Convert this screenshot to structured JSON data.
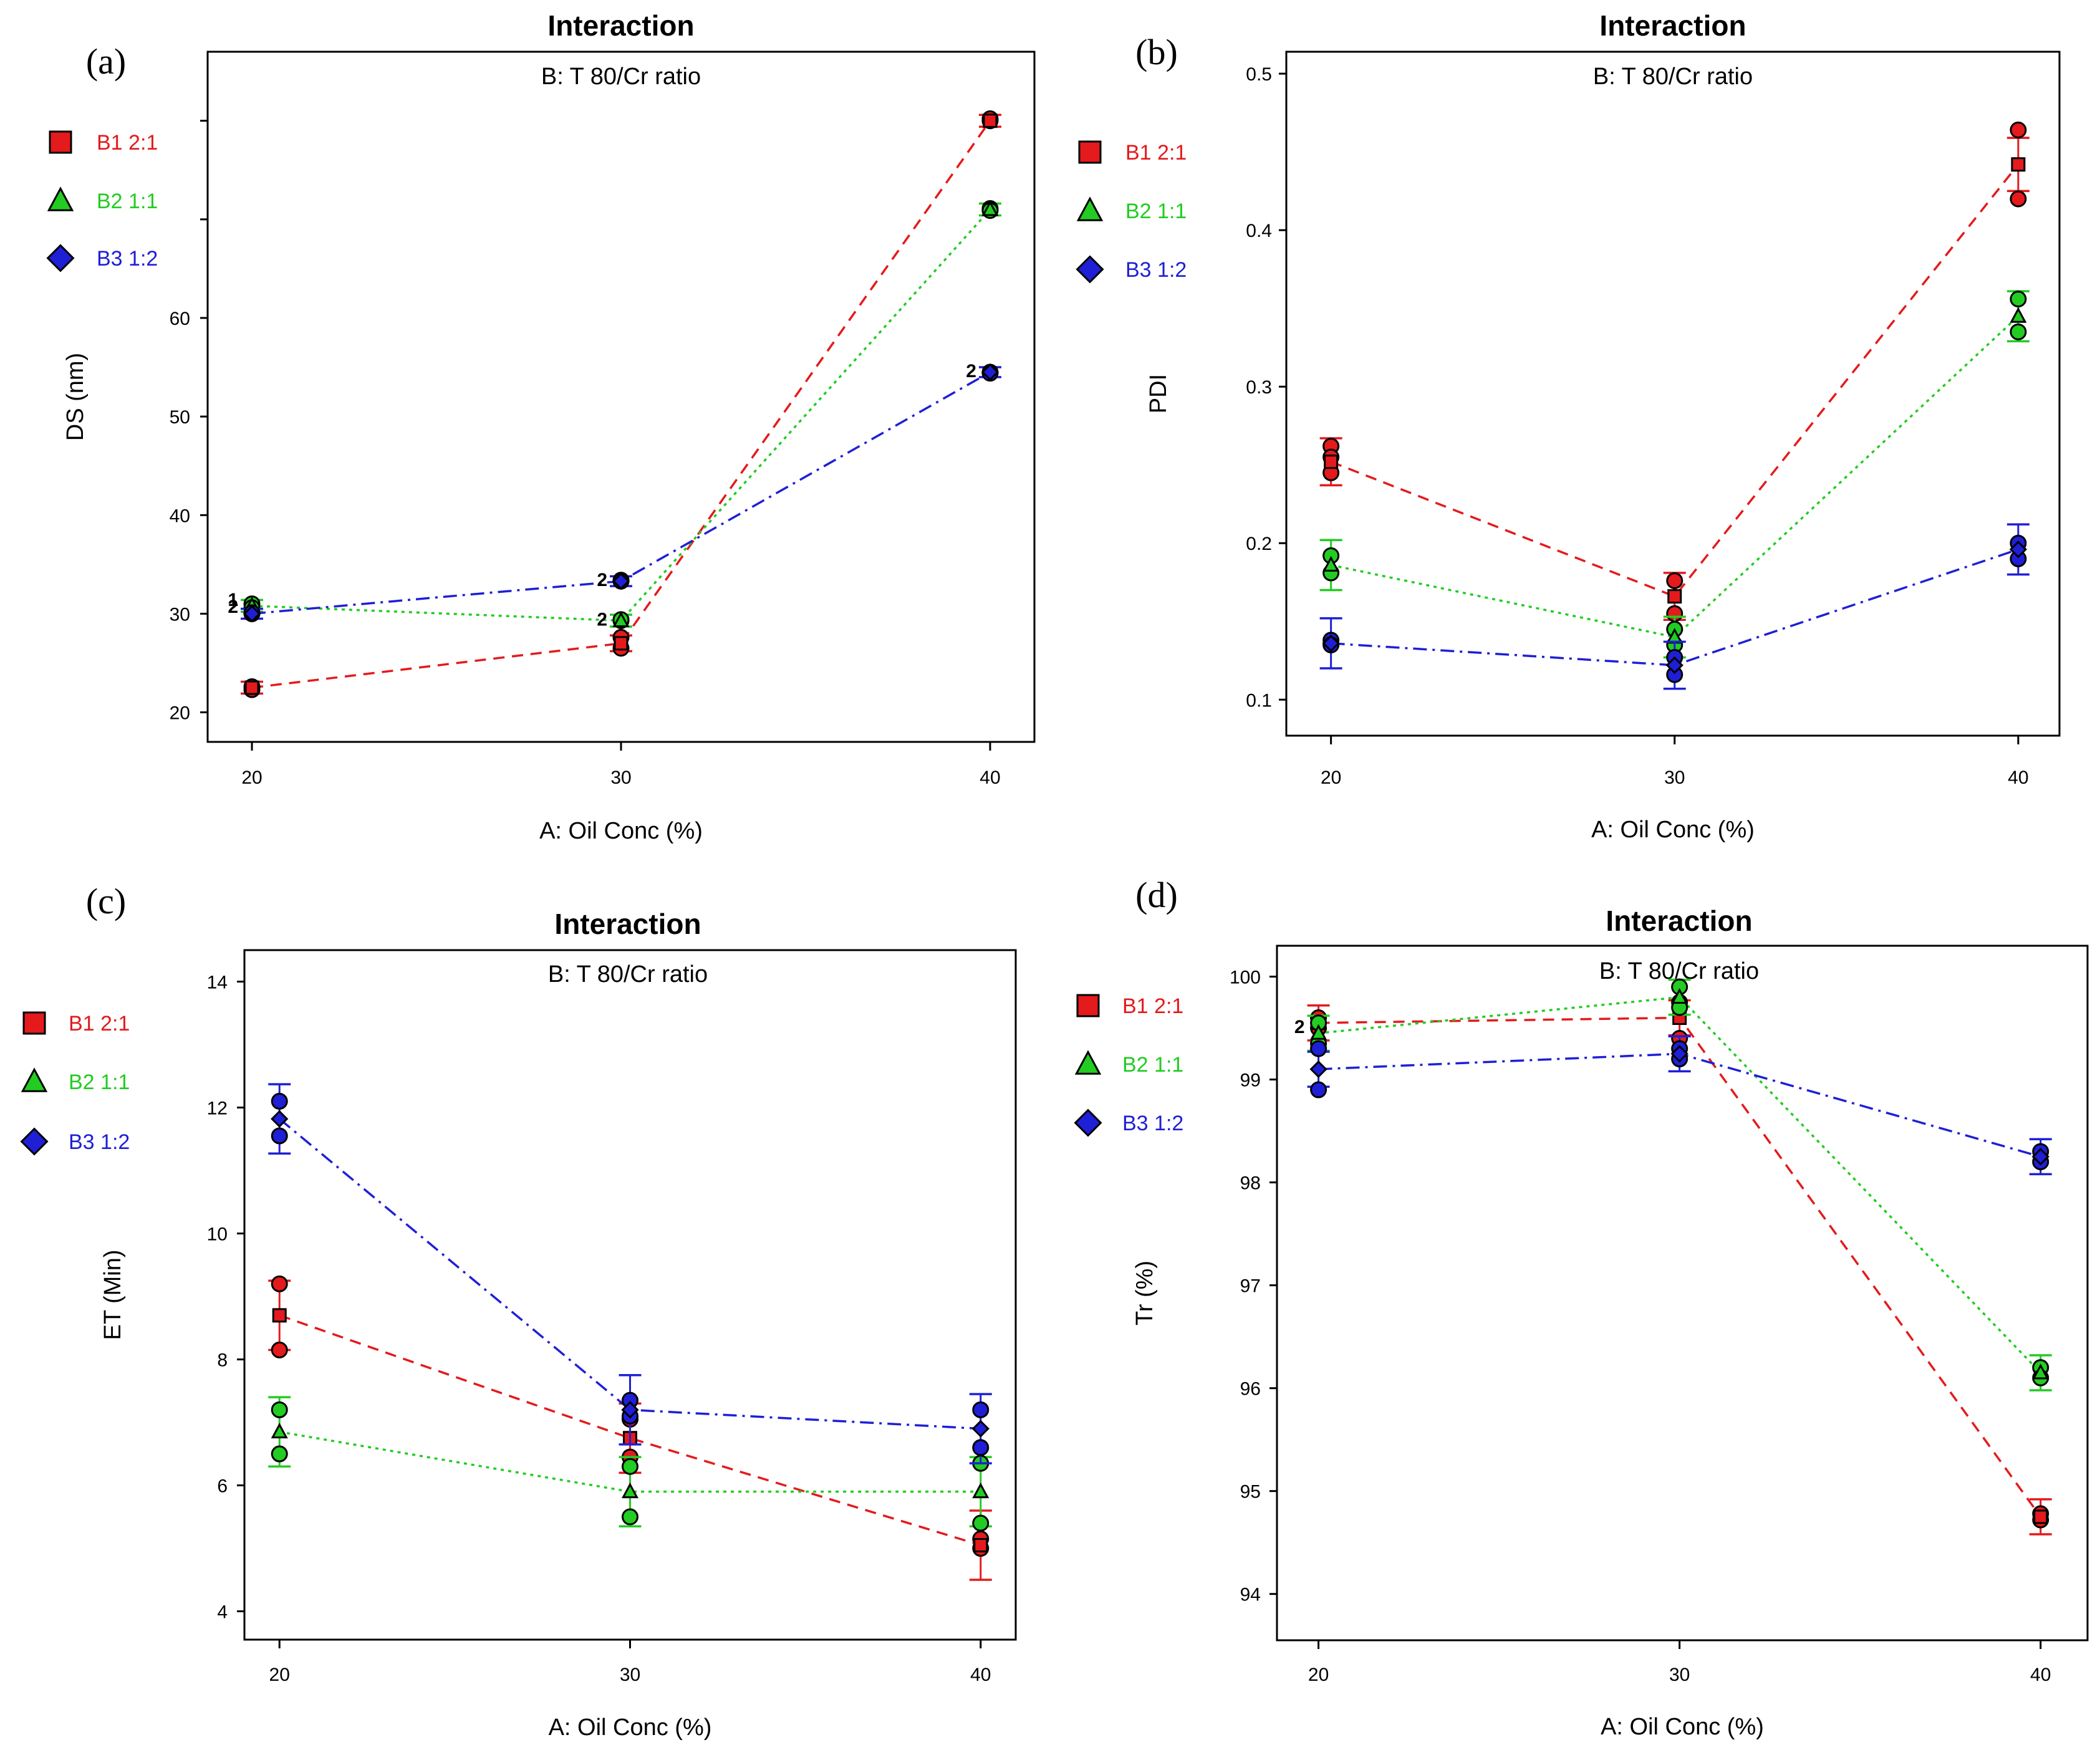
{
  "chart_data": [
    {
      "panel_label": "(a)",
      "type": "line",
      "title": "Interaction",
      "subtitle": "B: T 80/Cr ratio",
      "xlabel": "A: Oil Conc (%)",
      "ylabel": "DS (nm)",
      "x": [
        20,
        30,
        40
      ],
      "x_tick_labels": [
        "20",
        "30",
        "40"
      ],
      "xlim": [
        18.8,
        41.2
      ],
      "ylim": [
        17,
        87
      ],
      "y_ticks": [
        20,
        30,
        40,
        50,
        60,
        70,
        80
      ],
      "y_tick_labels": [
        "20",
        "30",
        "40",
        "50",
        "60",
        "",
        ""
      ],
      "series": [
        {
          "name": "B1 2:1",
          "color": "#e41a1c",
          "dash": "dashed",
          "marker": "square",
          "values": [
            22.5,
            27.0,
            80.0
          ],
          "err": [
            0.6,
            0.8,
            0.6
          ],
          "points": [
            [
              20,
              22.3
            ],
            [
              20,
              22.6
            ],
            [
              30,
              26.5
            ],
            [
              30,
              27.6
            ],
            [
              40,
              80.0
            ],
            [
              40,
              80.2
            ]
          ]
        },
        {
          "name": "B2 1:1",
          "color": "#22cc22",
          "dash": "dotted",
          "marker": "triangle",
          "values": [
            30.8,
            29.3,
            71.0
          ],
          "err": [
            0.6,
            0.6,
            0.6
          ],
          "points": [
            [
              20,
              31.0
            ],
            [
              20,
              30.6
            ],
            [
              30,
              29.3
            ],
            [
              30,
              29.4
            ],
            [
              40,
              71.1
            ],
            [
              40,
              70.9
            ]
          ]
        },
        {
          "name": "B3 1:2",
          "color": "#1f1fd6",
          "dash": "dashdot",
          "marker": "diamond",
          "values": [
            30.0,
            33.3,
            54.5
          ],
          "err": [
            0.5,
            0.5,
            0.5
          ],
          "points": [
            [
              20,
              30.0
            ],
            [
              20,
              30.1
            ],
            [
              30,
              33.4
            ],
            [
              30,
              33.3
            ],
            [
              40,
              54.5
            ],
            [
              40,
              54.4
            ]
          ]
        }
      ],
      "annotations": [
        {
          "x": 20,
          "y": 30.6,
          "text": "2"
        },
        {
          "x": 20,
          "y": 31.3,
          "text": "1"
        },
        {
          "x": 30,
          "y": 33.3,
          "text": "2"
        },
        {
          "x": 30,
          "y": 29.3,
          "text": "2"
        },
        {
          "x": 40,
          "y": 54.5,
          "text": "2"
        }
      ],
      "legend_position": "left"
    },
    {
      "panel_label": "(b)",
      "type": "line",
      "title": "Interaction",
      "subtitle": "B: T 80/Cr ratio",
      "xlabel": "A: Oil Conc (%)",
      "ylabel": "PDI",
      "x": [
        20,
        30,
        40
      ],
      "x_tick_labels": [
        "20",
        "30",
        "40"
      ],
      "xlim": [
        18.7,
        41.2
      ],
      "ylim": [
        0.077,
        0.514
      ],
      "y_ticks": [
        0.1,
        0.2,
        0.3,
        0.4,
        0.5
      ],
      "y_tick_labels": [
        "0.1",
        "0.2",
        "0.3",
        "0.4",
        "0.5"
      ],
      "series": [
        {
          "name": "B1 2:1",
          "color": "#e41a1c",
          "dash": "dashed",
          "marker": "square",
          "values": [
            0.252,
            0.166,
            0.442
          ],
          "err": [
            0.015,
            0.015,
            0.017
          ],
          "points": [
            [
              20,
              0.262
            ],
            [
              20,
              0.255
            ],
            [
              20,
              0.245
            ],
            [
              30,
              0.176
            ],
            [
              30,
              0.155
            ],
            [
              40,
              0.464
            ],
            [
              40,
              0.42
            ]
          ]
        },
        {
          "name": "B2 1:1",
          "color": "#22cc22",
          "dash": "dotted",
          "marker": "triangle",
          "values": [
            0.186,
            0.14,
            0.345
          ],
          "err": [
            0.016,
            0.013,
            0.016
          ],
          "points": [
            [
              20,
              0.192
            ],
            [
              20,
              0.181
            ],
            [
              30,
              0.145
            ],
            [
              30,
              0.135
            ],
            [
              40,
              0.356
            ],
            [
              40,
              0.335
            ]
          ]
        },
        {
          "name": "B3 1:2",
          "color": "#1f1fd6",
          "dash": "dashdot",
          "marker": "diamond",
          "values": [
            0.136,
            0.122,
            0.196
          ],
          "err": [
            0.016,
            0.015,
            0.016
          ],
          "points": [
            [
              20,
              0.138
            ],
            [
              20,
              0.135
            ],
            [
              30,
              0.127
            ],
            [
              30,
              0.116
            ],
            [
              40,
              0.2
            ],
            [
              40,
              0.19
            ]
          ]
        }
      ],
      "annotations": [],
      "legend_position": "left"
    },
    {
      "panel_label": "(c)",
      "type": "line",
      "title": "Interaction",
      "subtitle": "B: T 80/Cr ratio",
      "xlabel": "A: Oil Conc (%)",
      "ylabel": "ET (Min)",
      "x": [
        20,
        30,
        40
      ],
      "x_tick_labels": [
        "20",
        "30",
        "40"
      ],
      "xlim": [
        19.0,
        41.0
      ],
      "ylim": [
        3.55,
        14.5
      ],
      "y_ticks": [
        4,
        6,
        8,
        10,
        12,
        14
      ],
      "y_tick_labels": [
        "4",
        "6",
        "8",
        "10",
        "12",
        "14"
      ],
      "series": [
        {
          "name": "B1 2:1",
          "color": "#e41a1c",
          "dash": "dashed",
          "marker": "square",
          "values": [
            8.7,
            6.75,
            5.05
          ],
          "err": [
            0.55,
            0.55,
            0.55
          ],
          "points": [
            [
              20,
              9.2
            ],
            [
              20,
              8.15
            ],
            [
              30,
              7.05
            ],
            [
              30,
              6.45
            ],
            [
              40,
              5.15
            ],
            [
              40,
              5.0
            ]
          ]
        },
        {
          "name": "B2 1:1",
          "color": "#22cc22",
          "dash": "dotted",
          "marker": "triangle",
          "values": [
            6.85,
            5.9,
            5.9
          ],
          "err": [
            0.55,
            0.55,
            0.55
          ],
          "points": [
            [
              20,
              7.2
            ],
            [
              20,
              6.5
            ],
            [
              30,
              6.3
            ],
            [
              30,
              5.5
            ],
            [
              40,
              6.35
            ],
            [
              40,
              5.4
            ]
          ]
        },
        {
          "name": "B3 1:2",
          "color": "#1f1fd6",
          "dash": "dashdot",
          "marker": "diamond",
          "values": [
            11.82,
            7.2,
            6.9
          ],
          "err": [
            0.55,
            0.55,
            0.55
          ],
          "points": [
            [
              20,
              12.1
            ],
            [
              20,
              11.55
            ],
            [
              30,
              7.35
            ],
            [
              30,
              7.1
            ],
            [
              40,
              7.2
            ],
            [
              40,
              6.6
            ]
          ]
        }
      ],
      "annotations": [],
      "legend_position": "left"
    },
    {
      "panel_label": "(d)",
      "type": "line",
      "title": "Interaction",
      "subtitle": "B: T 80/Cr ratio",
      "xlabel": "A: Oil Conc (%)",
      "ylabel": "Tr (%)",
      "x": [
        20,
        30,
        40
      ],
      "x_tick_labels": [
        "20",
        "30",
        "40"
      ],
      "xlim": [
        18.85,
        41.3
      ],
      "ylim": [
        93.55,
        100.3
      ],
      "y_ticks": [
        94,
        95,
        96,
        97,
        98,
        99,
        100
      ],
      "y_tick_labels": [
        "94",
        "95",
        "96",
        "97",
        "98",
        "99",
        "100"
      ],
      "series": [
        {
          "name": "B1 2:1",
          "color": "#e41a1c",
          "dash": "dashed",
          "marker": "square",
          "values": [
            99.55,
            99.6,
            94.75
          ],
          "err": [
            0.17,
            0.17,
            0.17
          ],
          "points": [
            [
              20,
              99.6
            ],
            [
              20,
              99.5
            ],
            [
              30,
              99.75
            ],
            [
              30,
              99.4
            ],
            [
              40,
              94.78
            ],
            [
              40,
              94.72
            ]
          ]
        },
        {
          "name": "B2 1:1",
          "color": "#22cc22",
          "dash": "dotted",
          "marker": "triangle",
          "values": [
            99.45,
            99.8,
            96.15
          ],
          "err": [
            0.17,
            0.17,
            0.17
          ],
          "points": [
            [
              20,
              99.55
            ],
            [
              20,
              99.35
            ],
            [
              30,
              99.9
            ],
            [
              30,
              99.7
            ],
            [
              40,
              96.2
            ],
            [
              40,
              96.1
            ]
          ]
        },
        {
          "name": "B3 1:2",
          "color": "#1f1fd6",
          "dash": "dashdot",
          "marker": "diamond",
          "values": [
            99.1,
            99.25,
            98.25
          ],
          "err": [
            0.17,
            0.17,
            0.17
          ],
          "points": [
            [
              20,
              99.3
            ],
            [
              20,
              98.9
            ],
            [
              30,
              99.3
            ],
            [
              30,
              99.2
            ],
            [
              40,
              98.3
            ],
            [
              40,
              98.2
            ]
          ]
        }
      ],
      "annotations": [
        {
          "x": 20,
          "y": 99.5,
          "text": "2"
        }
      ],
      "legend_position": "left"
    }
  ]
}
